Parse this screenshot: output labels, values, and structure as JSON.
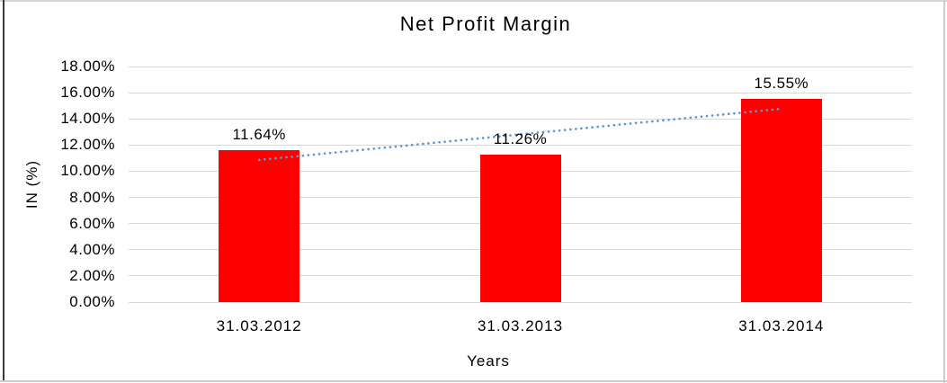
{
  "chart_data": {
    "type": "bar",
    "title": "Net Profit Margin",
    "xlabel": "Years",
    "ylabel": "IN (%)",
    "categories": [
      "31.03.2012",
      "31.03.2013",
      "31.03.2014"
    ],
    "values": [
      11.64,
      11.26,
      15.55
    ],
    "data_labels": [
      "11.64%",
      "11.26%",
      "15.55%"
    ],
    "y_ticks": [
      "0.00%",
      "2.00%",
      "4.00%",
      "6.00%",
      "8.00%",
      "10.00%",
      "12.00%",
      "14.00%",
      "16.00%",
      "18.00%"
    ],
    "y_tick_step": 2,
    "ylim": [
      0,
      18
    ],
    "grid": true,
    "legend": "none",
    "bar_color": "#ff0000",
    "gridline_color": "#d9d9d9",
    "text_color": "#000000",
    "trendline": {
      "type": "linear",
      "style": "dotted",
      "color": "#5f97d5",
      "start_value": 10.86,
      "end_value": 14.77
    }
  }
}
